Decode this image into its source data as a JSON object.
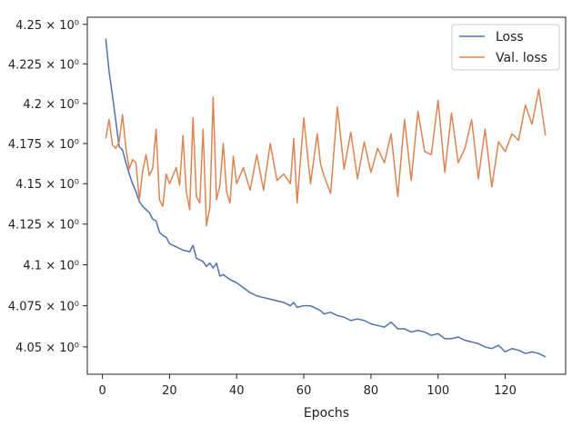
{
  "chart_data": {
    "type": "line",
    "xlabel": "Epochs",
    "ylabel": "",
    "title": "",
    "xlim": [
      -4.5,
      138.0
    ],
    "ylim": [
      4.0335,
      4.2545
    ],
    "y_scale": "log",
    "grid": false,
    "legend_placement": "top-right",
    "x_ticks": [
      {
        "value": 0,
        "label": "0"
      },
      {
        "value": 20,
        "label": "20"
      },
      {
        "value": 40,
        "label": "40"
      },
      {
        "value": 60,
        "label": "60"
      },
      {
        "value": 80,
        "label": "80"
      },
      {
        "value": 100,
        "label": "100"
      },
      {
        "value": 120,
        "label": "120"
      }
    ],
    "y_ticks": [
      {
        "value": 4.25,
        "label": "4.25 × 10⁰"
      },
      {
        "value": 4.225,
        "label": "4.225 × 10⁰"
      },
      {
        "value": 4.2,
        "label": "4.2 × 10⁰"
      },
      {
        "value": 4.175,
        "label": "4.175 × 10⁰"
      },
      {
        "value": 4.15,
        "label": "4.15 × 10⁰"
      },
      {
        "value": 4.125,
        "label": "4.125 × 10⁰"
      },
      {
        "value": 4.1,
        "label": "4.1 × 10⁰"
      },
      {
        "value": 4.075,
        "label": "4.075 × 10⁰"
      },
      {
        "value": 4.05,
        "label": "4.05 × 10⁰"
      }
    ],
    "series": [
      {
        "name": "Loss",
        "color": "#4c72b0",
        "x": [
          1,
          2,
          3,
          4,
          5,
          6,
          7,
          8,
          9,
          10,
          11,
          12,
          13,
          14,
          15,
          16,
          17,
          18,
          19,
          20,
          22,
          24,
          26,
          27,
          28,
          30,
          31,
          32,
          33,
          34,
          35,
          36,
          38,
          40,
          42,
          44,
          46,
          48,
          50,
          52,
          54,
          56,
          57,
          58,
          60,
          62,
          64,
          65,
          66,
          68,
          70,
          72,
          74,
          76,
          78,
          80,
          82,
          84,
          86,
          88,
          90,
          92,
          94,
          96,
          98,
          100,
          102,
          104,
          106,
          108,
          110,
          112,
          114,
          116,
          118,
          120,
          122,
          124,
          126,
          128,
          130,
          132
        ],
        "y": [
          4.241,
          4.22,
          4.205,
          4.189,
          4.173,
          4.171,
          4.163,
          4.156,
          4.15,
          4.145,
          4.139,
          4.136,
          4.134,
          4.132,
          4.128,
          4.127,
          4.12,
          4.118,
          4.117,
          4.113,
          4.111,
          4.109,
          4.108,
          4.112,
          4.104,
          4.102,
          4.099,
          4.101,
          4.098,
          4.101,
          4.093,
          4.094,
          4.091,
          4.089,
          4.086,
          4.083,
          4.081,
          4.08,
          4.079,
          4.078,
          4.077,
          4.075,
          4.077,
          4.074,
          4.075,
          4.075,
          4.073,
          4.072,
          4.07,
          4.071,
          4.069,
          4.068,
          4.066,
          4.067,
          4.066,
          4.064,
          4.063,
          4.062,
          4.065,
          4.061,
          4.061,
          4.059,
          4.06,
          4.059,
          4.057,
          4.058,
          4.055,
          4.055,
          4.056,
          4.054,
          4.053,
          4.052,
          4.05,
          4.049,
          4.051,
          4.047,
          4.049,
          4.048,
          4.046,
          4.047,
          4.046,
          4.044
        ]
      },
      {
        "name": "Val. loss",
        "color": "#dd8452",
        "x": [
          1,
          2,
          3,
          4,
          5,
          6,
          7,
          8,
          9,
          10,
          11,
          12,
          13,
          14,
          15,
          16,
          17,
          18,
          19,
          20,
          21,
          22,
          23,
          24,
          25,
          26,
          27,
          28,
          29,
          30,
          31,
          32,
          33,
          34,
          35,
          36,
          37,
          38,
          39,
          40,
          42,
          44,
          46,
          48,
          50,
          52,
          54,
          56,
          57,
          58,
          60,
          62,
          64,
          65,
          66,
          68,
          70,
          72,
          74,
          76,
          78,
          80,
          82,
          84,
          86,
          88,
          90,
          92,
          94,
          96,
          98,
          100,
          102,
          104,
          106,
          108,
          110,
          112,
          114,
          116,
          118,
          120,
          122,
          124,
          126,
          128,
          130,
          132
        ],
        "y": [
          4.178,
          4.19,
          4.174,
          4.172,
          4.176,
          4.193,
          4.172,
          4.159,
          4.165,
          4.163,
          4.14,
          4.158,
          4.168,
          4.155,
          4.16,
          4.184,
          4.14,
          4.136,
          4.156,
          4.15,
          4.155,
          4.16,
          4.149,
          4.18,
          4.145,
          4.134,
          4.191,
          4.142,
          4.138,
          4.184,
          4.124,
          4.135,
          4.204,
          4.14,
          4.149,
          4.175,
          4.145,
          4.138,
          4.167,
          4.15,
          4.16,
          4.146,
          4.168,
          4.146,
          4.175,
          4.152,
          4.156,
          4.15,
          4.178,
          4.138,
          4.191,
          4.15,
          4.181,
          4.162,
          4.155,
          4.144,
          4.198,
          4.159,
          4.182,
          4.153,
          4.176,
          4.157,
          4.172,
          4.163,
          4.181,
          4.142,
          4.19,
          4.152,
          4.195,
          4.17,
          4.168,
          4.202,
          4.157,
          4.194,
          4.163,
          4.172,
          4.19,
          4.153,
          4.184,
          4.148,
          4.176,
          4.17,
          4.181,
          4.177,
          4.199,
          4.187,
          4.209,
          4.18
        ]
      }
    ]
  }
}
